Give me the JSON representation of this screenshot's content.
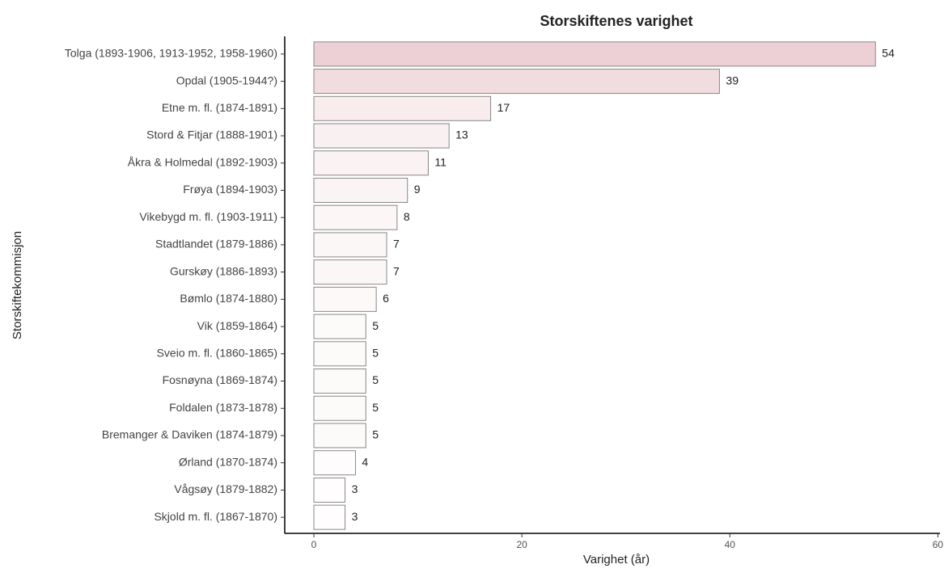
{
  "chart_data": {
    "type": "barh",
    "title": "Storskiftenes varighet",
    "x_label": "Varighet (år)",
    "y_label": "Storskiftekommisjon",
    "categories": [
      "Tolga (1893-1906, 1913-1952, 1958-1960)",
      "Opdal (1905-1944?)",
      "Etne m. fl. (1874-1891)",
      "Stord & Fitjar (1888-1901)",
      "Åkra & Holmedal (1892-1903)",
      "Frøya (1894-1903)",
      "Vikebygd m. fl. (1903-1911)",
      "Stadtlandet (1879-1886)",
      "Gurskøy (1886-1893)",
      "Bømlo (1874-1880)",
      "Vik (1859-1864)",
      "Sveio m. fl. (1860-1865)",
      "Fosnøyna (1869-1874)",
      "Foldalen (1873-1878)",
      "Bremanger & Daviken (1874-1879)",
      "Ørland (1870-1874)",
      "Vågsøy (1879-1882)",
      "Skjold m. fl. (1867-1870)"
    ],
    "values": [
      54,
      39,
      17,
      13,
      11,
      9,
      8,
      7,
      7,
      6,
      5,
      5,
      5,
      5,
      5,
      4,
      3,
      3
    ],
    "colors": [
      "#ecd0d5",
      "#f1dde0",
      "#f8eced",
      "#f9f0f1",
      "#faf2f3",
      "#fbf4f5",
      "#fcf6f6",
      "#fcf7f7",
      "#fcf7f7",
      "#fdf9f9",
      "#fdfafa",
      "#fdfafa",
      "#fdfafa",
      "#fdfafa",
      "#fdfafa",
      "#fefcfc",
      "#fffdfd",
      "#fffdfd"
    ],
    "xlim": [
      -2.8,
      60.2
    ],
    "xticks": [
      0,
      20,
      40,
      60
    ],
    "grid": false
  }
}
